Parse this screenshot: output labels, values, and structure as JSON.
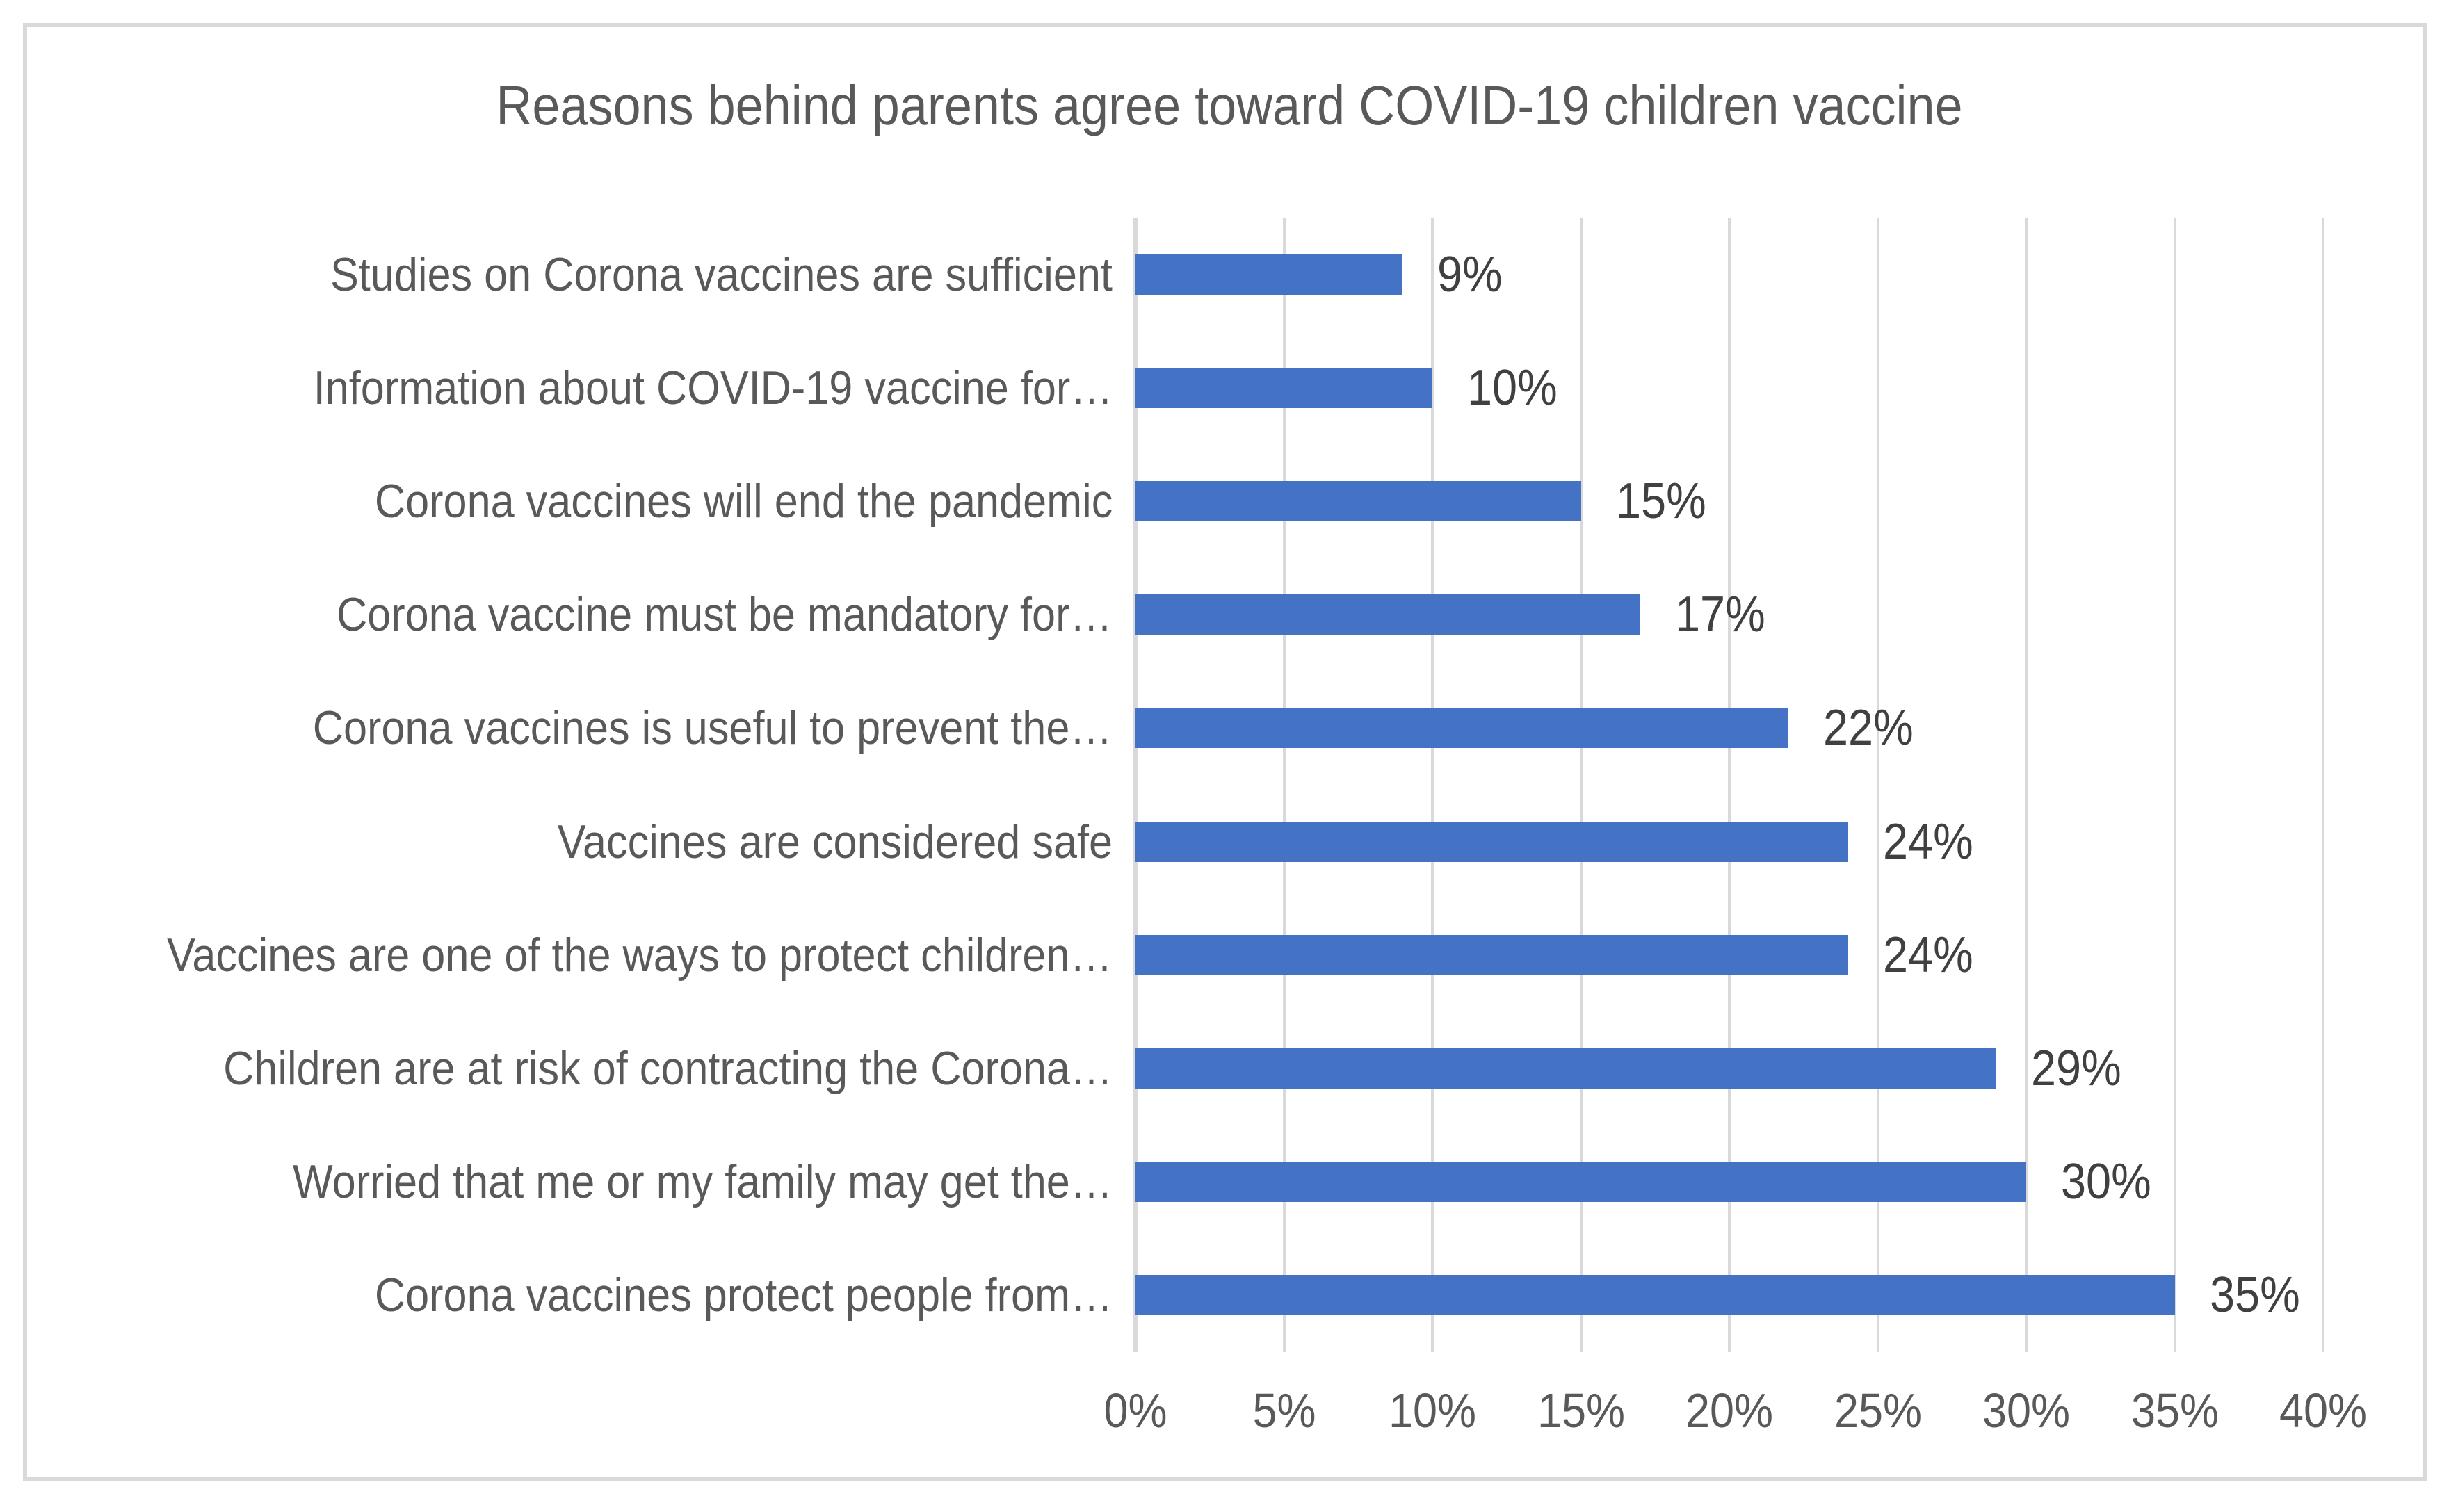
{
  "chart_data": {
    "type": "bar",
    "orientation": "horizontal",
    "title": "Reasons behind parents agree toward COVID-19 children vaccine",
    "categories": [
      "Studies on Corona vaccines are sufficient",
      "Information about COVID-19 vaccine for…",
      "Corona vaccines will end the pandemic",
      "Corona vaccine must be mandatory for…",
      "Corona vaccines is useful to prevent the…",
      "Vaccines are considered safe",
      "Vaccines are one of the ways to protect children…",
      "Children are at risk of contracting the Corona…",
      "Worried that me or my family may get the…",
      "Corona vaccines protect people from…"
    ],
    "values": [
      9,
      10,
      15,
      17,
      22,
      24,
      24,
      29,
      30,
      35
    ],
    "value_labels": [
      "9%",
      "10%",
      "15%",
      "17%",
      "22%",
      "24%",
      "24%",
      "29%",
      "30%",
      "35%"
    ],
    "x_ticks": [
      "0%",
      "5%",
      "10%",
      "15%",
      "20%",
      "25%",
      "30%",
      "35%",
      "40%"
    ],
    "x_tick_values": [
      0,
      5,
      10,
      15,
      20,
      25,
      30,
      35,
      40
    ],
    "xlim": [
      0,
      40
    ],
    "grid": true,
    "legend": false,
    "colors": {
      "bar": "#4472c4",
      "gridline": "#d9d9d9",
      "figure_border": "#d9d9d9",
      "title_text": "#595959",
      "category_text": "#595959",
      "tick_text": "#595959",
      "value_text": "#404040",
      "background": "#ffffff"
    }
  }
}
